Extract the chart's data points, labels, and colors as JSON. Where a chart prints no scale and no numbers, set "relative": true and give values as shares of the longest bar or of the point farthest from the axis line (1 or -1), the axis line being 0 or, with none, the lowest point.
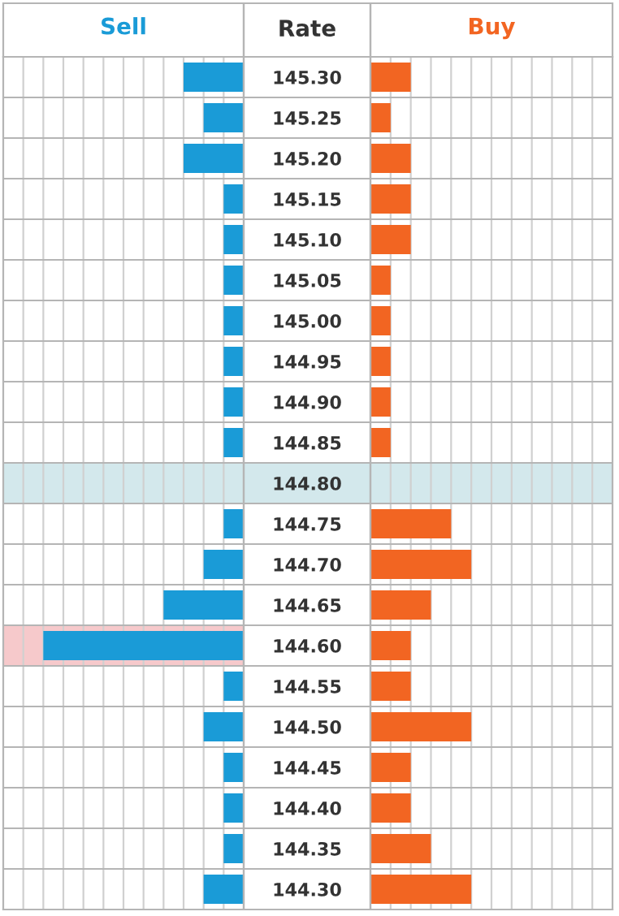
{
  "chart_data": [
    {
      "type": "bar",
      "orientation": "horizontal",
      "relative": true,
      "title": "Sell",
      "ylabel": "Rate",
      "grid": true,
      "categories": [
        "145.30",
        "145.25",
        "145.20",
        "145.15",
        "145.10",
        "145.05",
        "145.00",
        "144.95",
        "144.90",
        "144.85",
        "144.80",
        "144.75",
        "144.70",
        "144.65",
        "144.60",
        "144.55",
        "144.50",
        "144.45",
        "144.40",
        "144.35",
        "144.30"
      ],
      "series": [
        {
          "color": "#1a9bd7",
          "values": [
            -0.3,
            -0.2,
            -0.3,
            -0.1,
            -0.1,
            -0.1,
            -0.1,
            -0.1,
            -0.1,
            -0.1,
            0,
            -0.1,
            -0.2,
            -0.4,
            -1,
            -0.1,
            -0.2,
            -0.1,
            -0.1,
            -0.1,
            -0.2
          ]
        }
      ],
      "bands": [
        {
          "axis": "y",
          "from": "144.80",
          "to": "144.80",
          "color": "#d3e8ec"
        },
        {
          "axis": "y",
          "from": "144.60",
          "to": "144.60",
          "color": "#f6c9cb"
        }
      ]
    },
    {
      "type": "bar",
      "orientation": "horizontal",
      "relative": true,
      "title": "Buy",
      "grid": true,
      "tick_labels": false,
      "categories": [
        "145.30",
        "145.25",
        "145.20",
        "145.15",
        "145.10",
        "145.05",
        "145.00",
        "144.95",
        "144.90",
        "144.85",
        "144.80",
        "144.75",
        "144.70",
        "144.65",
        "144.60",
        "144.55",
        "144.50",
        "144.45",
        "144.40",
        "144.35",
        "144.30"
      ],
      "series": [
        {
          "color": "#f26522",
          "values": [
            0.4,
            0.2,
            0.4,
            0.4,
            0.4,
            0.2,
            0.2,
            0.2,
            0.2,
            0.2,
            0,
            0.8,
            1,
            0.6,
            0.4,
            0.4,
            1,
            0.4,
            0.4,
            0.6,
            1
          ]
        }
      ],
      "bands": [
        {
          "axis": "y",
          "from": "144.80",
          "to": "144.80",
          "color": "#d3e8ec"
        }
      ]
    }
  ]
}
